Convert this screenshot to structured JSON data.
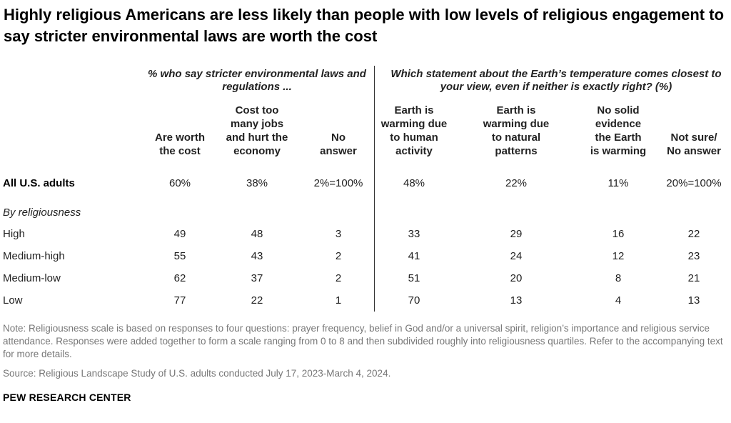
{
  "title": "Highly religious Americans are less likely than people with low levels of religious engagement to say stricter environmental laws are worth the cost",
  "chart_data": {
    "type": "table",
    "group_headers": [
      "% who say stricter environmental laws and regulations ...",
      "Which statement about the Earth’s temperature comes closest to your view, even if neither is exactly right? (%)"
    ],
    "columns": [
      [
        "Are worth",
        "the cost"
      ],
      [
        "Cost too",
        "many jobs",
        "and hurt the",
        "economy"
      ],
      [
        "No",
        "answer"
      ],
      [
        "Earth is",
        "warming due",
        "to human",
        "activity"
      ],
      [
        "Earth is",
        "warming due",
        "to natural",
        "patterns"
      ],
      [
        "No solid",
        "evidence",
        "the Earth",
        "is warming"
      ],
      [
        "Not sure/",
        "No answer"
      ]
    ],
    "total_row": {
      "label": "All U.S. adults",
      "values": [
        "60%",
        "38%",
        "2%=100%",
        "48%",
        "22%",
        "11%",
        "20%=100%"
      ]
    },
    "section_label": "By religiousness",
    "rows": [
      {
        "label": "High",
        "values": [
          49,
          48,
          3,
          33,
          29,
          16,
          22
        ]
      },
      {
        "label": "Medium-high",
        "values": [
          55,
          43,
          2,
          41,
          24,
          12,
          23
        ]
      },
      {
        "label": "Medium-low",
        "values": [
          62,
          37,
          2,
          51,
          20,
          8,
          21
        ]
      },
      {
        "label": "Low",
        "values": [
          77,
          22,
          1,
          70,
          13,
          4,
          13
        ]
      }
    ]
  },
  "note": "Note: Religiousness scale is based on responses to four questions: prayer frequency, belief in God and/or a universal spirit, religion’s importance and religious service attendance. Responses were added together to form a scale ranging from 0 to 8 and then subdivided roughly into religiousness quartiles. Refer to the accompanying text for more details.",
  "source": "Source: Religious Landscape Study of U.S. adults conducted July 17, 2023-March 4, 2024.",
  "brand": "PEW RESEARCH CENTER"
}
